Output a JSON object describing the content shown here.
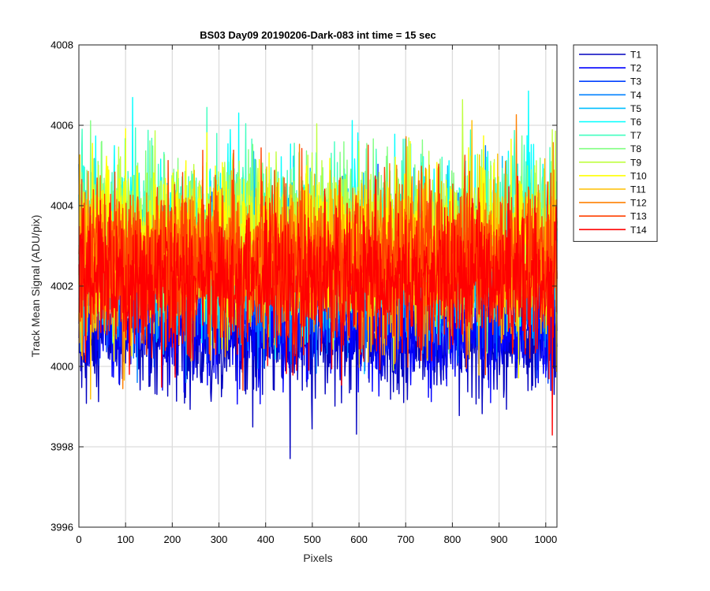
{
  "chart_data": {
    "type": "line",
    "title": "BS03 Day09 20190206-Dark-083 int time = 15 sec",
    "xlabel": "Pixels",
    "ylabel": "Track Mean Signal (ADU/pix)",
    "xlim": [
      0,
      1024
    ],
    "ylim": [
      3996,
      4008
    ],
    "xticks": [
      0,
      100,
      200,
      300,
      400,
      500,
      600,
      700,
      800,
      900,
      1000
    ],
    "yticks": [
      3996,
      3998,
      4000,
      4002,
      4004,
      4006,
      4008
    ],
    "grid": true,
    "legend_position": "outside-top-right",
    "num_points": 1024,
    "series": [
      {
        "name": "T1",
        "color": "#0000bf",
        "mean": 4000.7,
        "spread": 0.75,
        "min": 3997.6,
        "max": 4002.8
      },
      {
        "name": "T2",
        "color": "#0000ff",
        "mean": 4001.1,
        "spread": 0.7,
        "min": 3998.6,
        "max": 4003.2
      },
      {
        "name": "T3",
        "color": "#0040ff",
        "mean": 4002.2,
        "spread": 0.85,
        "min": 3999.5,
        "max": 4006.0
      },
      {
        "name": "T4",
        "color": "#0080ff",
        "mean": 4002.5,
        "spread": 0.9,
        "min": 3999.6,
        "max": 4006.5
      },
      {
        "name": "T5",
        "color": "#00bfff",
        "mean": 4002.6,
        "spread": 0.9,
        "min": 3999.8,
        "max": 4006.7
      },
      {
        "name": "T6",
        "color": "#00ffff",
        "mean": 4003.1,
        "spread": 0.95,
        "min": 4000.0,
        "max": 4007.0
      },
      {
        "name": "T7",
        "color": "#40ffbf",
        "mean": 4003.2,
        "spread": 0.95,
        "min": 4000.0,
        "max": 4006.9
      },
      {
        "name": "T8",
        "color": "#80ff80",
        "mean": 4003.3,
        "spread": 0.95,
        "min": 4000.1,
        "max": 4006.8
      },
      {
        "name": "T9",
        "color": "#bfff40",
        "mean": 4003.2,
        "spread": 0.95,
        "min": 3999.9,
        "max": 4006.8
      },
      {
        "name": "T10",
        "color": "#ffff00",
        "mean": 4003.0,
        "spread": 0.95,
        "min": 3999.6,
        "max": 4006.7
      },
      {
        "name": "T11",
        "color": "#ffbf00",
        "mean": 4002.7,
        "spread": 0.95,
        "min": 3999.0,
        "max": 4006.4
      },
      {
        "name": "T12",
        "color": "#ff8000",
        "mean": 4002.6,
        "spread": 0.95,
        "min": 3998.5,
        "max": 4006.3
      },
      {
        "name": "T13",
        "color": "#ff4000",
        "mean": 4002.6,
        "spread": 0.95,
        "min": 3998.4,
        "max": 4006.4
      },
      {
        "name": "T14",
        "color": "#ff0000",
        "mean": 4002.1,
        "spread": 0.85,
        "min": 3998.2,
        "max": 4005.3
      }
    ]
  }
}
